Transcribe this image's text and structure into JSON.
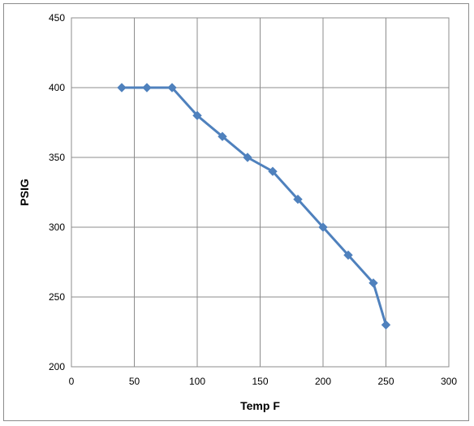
{
  "chart_data": {
    "type": "line",
    "title": "",
    "xlabel": "Temp F",
    "ylabel": "PSIG",
    "xlim": [
      0,
      300
    ],
    "ylim": [
      200,
      450
    ],
    "xticks": [
      0,
      50,
      100,
      150,
      200,
      250,
      300
    ],
    "yticks": [
      200,
      250,
      300,
      350,
      400,
      450
    ],
    "grid": true,
    "legend": "none",
    "series": [
      {
        "color": "#4f81bd",
        "marker": "diamond",
        "x": [
          40,
          60,
          80,
          100,
          120,
          140,
          160,
          180,
          200,
          220,
          240,
          250
        ],
        "y": [
          400,
          400,
          400,
          380,
          365,
          350,
          340,
          320,
          300,
          280,
          260,
          230
        ]
      }
    ]
  }
}
